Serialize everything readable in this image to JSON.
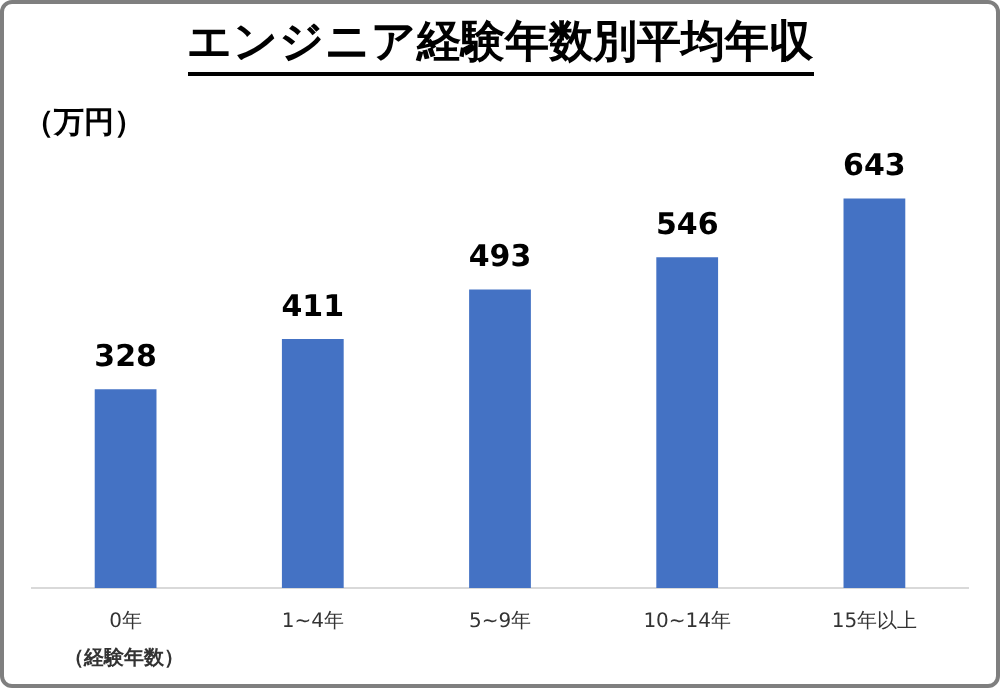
{
  "chart_data": {
    "type": "bar",
    "title": "エンジニア経験年数別平均年収",
    "ylabel": "（万円）",
    "xlabel": "（経験年数）",
    "categories": [
      "0年",
      "1~4年",
      "5~9年",
      "10~14年",
      "15年以上"
    ],
    "values": [
      328,
      411,
      493,
      546,
      643
    ],
    "color": "#4472c4",
    "data_labels": true,
    "grid": false,
    "legend": false
  }
}
